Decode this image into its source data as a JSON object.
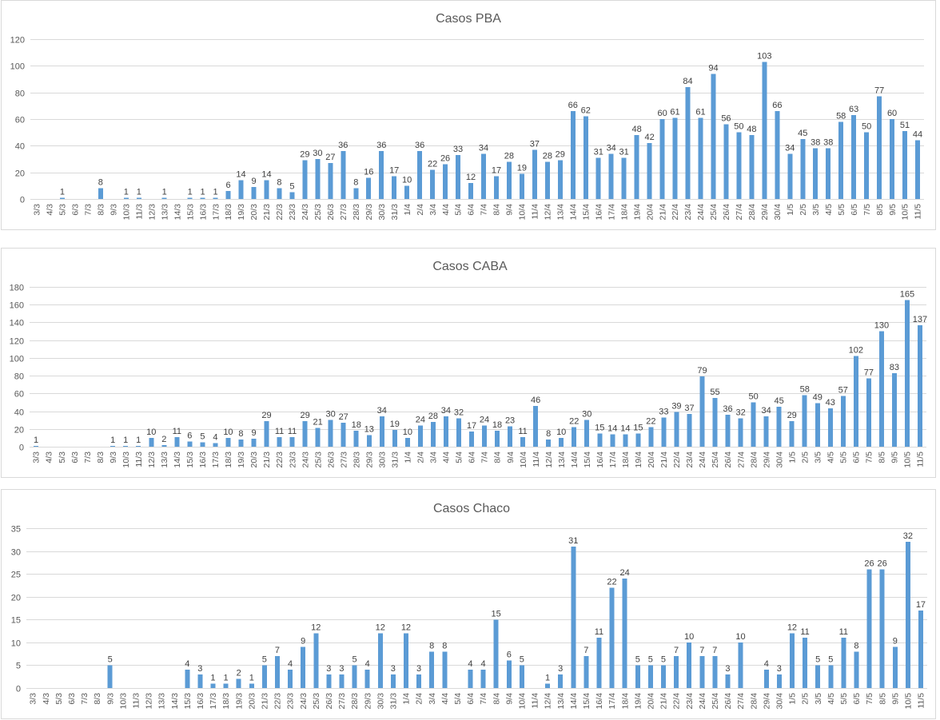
{
  "chart_data": [
    {
      "type": "bar",
      "title": "Casos PBA",
      "categories": [
        "3/3",
        "4/3",
        "5/3",
        "6/3",
        "7/3",
        "8/3",
        "9/3",
        "10/3",
        "11/3",
        "12/3",
        "13/3",
        "14/3",
        "15/3",
        "16/3",
        "17/3",
        "18/3",
        "19/3",
        "20/3",
        "21/3",
        "22/3",
        "23/3",
        "24/3",
        "25/3",
        "26/3",
        "27/3",
        "28/3",
        "29/3",
        "30/3",
        "31/3",
        "1/4",
        "2/4",
        "3/4",
        "4/4",
        "5/4",
        "6/4",
        "7/4",
        "8/4",
        "9/4",
        "10/4",
        "11/4",
        "12/4",
        "13/4",
        "14/4",
        "15/4",
        "16/4",
        "17/4",
        "18/4",
        "19/4",
        "20/4",
        "21/4",
        "22/4",
        "23/4",
        "24/4",
        "25/4",
        "26/4",
        "27/4",
        "28/4",
        "29/4",
        "30/4",
        "1/5",
        "2/5",
        "3/5",
        "4/5",
        "5/5",
        "6/5",
        "7/5",
        "8/5",
        "9/5",
        "10/5",
        "11/5"
      ],
      "values": [
        null,
        null,
        1,
        null,
        null,
        8,
        null,
        1,
        1,
        null,
        1,
        null,
        1,
        1,
        1,
        6,
        14,
        9,
        14,
        8,
        5,
        29,
        30,
        27,
        36,
        8,
        16,
        36,
        17,
        10,
        36,
        22,
        26,
        33,
        12,
        34,
        17,
        28,
        19,
        37,
        28,
        29,
        66,
        62,
        31,
        34,
        31,
        48,
        42,
        60,
        61,
        84,
        61,
        94,
        56,
        50,
        48,
        103,
        66,
        34,
        45,
        38,
        38,
        58,
        63,
        50,
        77,
        60,
        51,
        44
      ],
      "ylim": [
        0,
        120
      ],
      "yticks": [
        0,
        20,
        40,
        60,
        80,
        100,
        120
      ],
      "grid": true,
      "data_labels": true,
      "bar_color": "#5B9BD5"
    },
    {
      "type": "bar",
      "title": "Casos CABA",
      "categories": [
        "3/3",
        "4/3",
        "5/3",
        "6/3",
        "7/3",
        "8/3",
        "9/3",
        "10/3",
        "11/3",
        "12/3",
        "13/3",
        "14/3",
        "15/3",
        "16/3",
        "17/3",
        "18/3",
        "19/3",
        "20/3",
        "21/3",
        "22/3",
        "23/3",
        "24/3",
        "25/3",
        "26/3",
        "27/3",
        "28/3",
        "29/3",
        "30/3",
        "31/3",
        "1/4",
        "2/4",
        "3/4",
        "4/4",
        "5/4",
        "6/4",
        "7/4",
        "8/4",
        "9/4",
        "10/4",
        "11/4",
        "12/4",
        "13/4",
        "14/4",
        "15/4",
        "16/4",
        "17/4",
        "18/4",
        "19/4",
        "20/4",
        "21/4",
        "22/4",
        "23/4",
        "24/4",
        "25/4",
        "26/4",
        "27/4",
        "28/4",
        "29/4",
        "30/4",
        "1/5",
        "2/5",
        "3/5",
        "4/5",
        "5/5",
        "6/5",
        "7/5",
        "8/5",
        "9/5",
        "10/5",
        "11/5"
      ],
      "values": [
        1,
        null,
        null,
        null,
        null,
        null,
        1,
        1,
        1,
        10,
        2,
        11,
        6,
        5,
        4,
        10,
        8,
        9,
        29,
        11,
        11,
        29,
        21,
        30,
        27,
        18,
        13,
        34,
        19,
        10,
        24,
        28,
        34,
        32,
        17,
        24,
        18,
        23,
        11,
        46,
        8,
        10,
        22,
        30,
        15,
        14,
        14,
        15,
        22,
        33,
        39,
        37,
        79,
        55,
        36,
        32,
        50,
        34,
        45,
        29,
        58,
        49,
        43,
        57,
        102,
        77,
        130,
        83,
        165,
        137
      ],
      "ylim": [
        0,
        180
      ],
      "yticks": [
        0,
        20,
        40,
        60,
        80,
        100,
        120,
        140,
        160,
        180
      ],
      "grid": true,
      "data_labels": true,
      "bar_color": "#5B9BD5"
    },
    {
      "type": "bar",
      "title": "Casos Chaco",
      "categories": [
        "3/3",
        "4/3",
        "5/3",
        "6/3",
        "7/3",
        "8/3",
        "9/3",
        "10/3",
        "11/3",
        "12/3",
        "13/3",
        "14/3",
        "15/3",
        "16/3",
        "17/3",
        "18/3",
        "19/3",
        "20/3",
        "21/3",
        "22/3",
        "23/3",
        "24/3",
        "25/3",
        "26/3",
        "27/3",
        "28/3",
        "29/3",
        "30/3",
        "31/3",
        "1/4",
        "2/4",
        "3/4",
        "4/4",
        "5/4",
        "6/4",
        "7/4",
        "8/4",
        "9/4",
        "10/4",
        "11/4",
        "12/4",
        "13/4",
        "14/4",
        "15/4",
        "16/4",
        "17/4",
        "18/4",
        "19/4",
        "20/4",
        "21/4",
        "22/4",
        "23/4",
        "24/4",
        "25/4",
        "26/4",
        "27/4",
        "28/4",
        "29/4",
        "30/4",
        "1/5",
        "2/5",
        "3/5",
        "4/5",
        "5/5",
        "6/5",
        "7/5",
        "8/5",
        "9/5",
        "10/5",
        "11/5"
      ],
      "values": [
        null,
        null,
        null,
        null,
        null,
        null,
        5,
        null,
        null,
        null,
        null,
        null,
        4,
        3,
        1,
        1,
        2,
        1,
        5,
        7,
        4,
        9,
        12,
        3,
        3,
        5,
        4,
        12,
        3,
        12,
        3,
        8,
        8,
        null,
        4,
        4,
        15,
        6,
        5,
        null,
        1,
        3,
        31,
        7,
        11,
        22,
        24,
        5,
        5,
        5,
        7,
        10,
        7,
        7,
        3,
        10,
        null,
        4,
        3,
        12,
        11,
        5,
        5,
        11,
        8,
        26,
        26,
        9,
        32,
        17
      ],
      "ylim": [
        0,
        35
      ],
      "yticks": [
        0,
        5,
        10,
        15,
        20,
        25,
        30,
        35
      ],
      "grid": true,
      "data_labels": true,
      "bar_color": "#5B9BD5"
    }
  ]
}
